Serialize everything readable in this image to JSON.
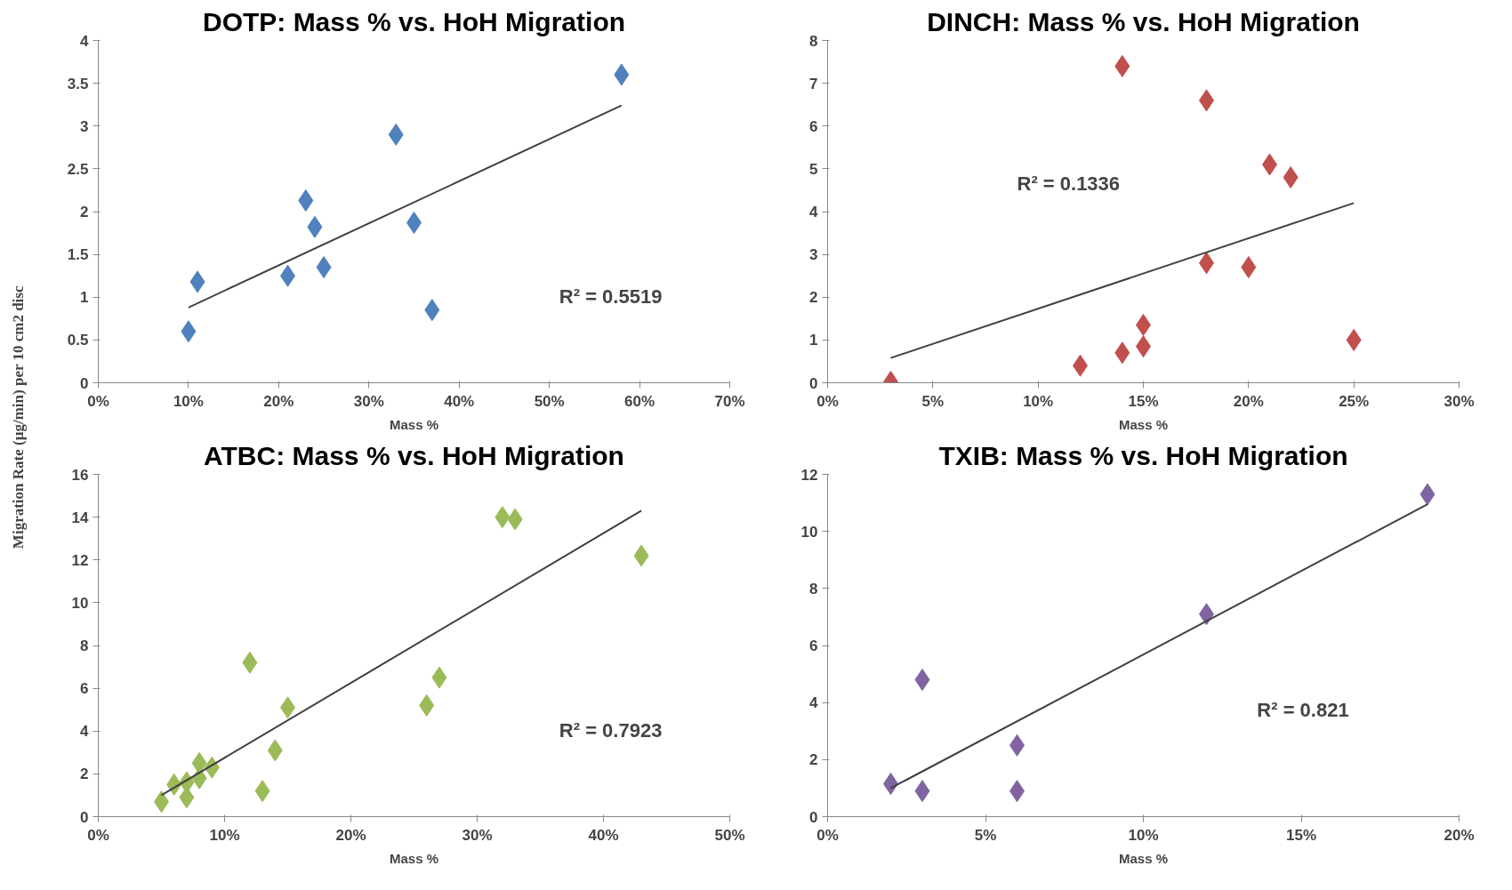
{
  "chart_data": [
    {
      "type": "scatter",
      "title": "DOTP: Mass % vs. HoH Migration",
      "xlabel": "Mass %",
      "ylabel": "Migration Rate (µg/min) per 10 cm2 disc",
      "grid": false,
      "xlim": [
        0,
        70
      ],
      "xticks": [
        {
          "value": 0,
          "label": "0%"
        },
        {
          "value": 10,
          "label": "10%"
        },
        {
          "value": 20,
          "label": "20%"
        },
        {
          "value": 30,
          "label": "30%"
        },
        {
          "value": 40,
          "label": "40%"
        },
        {
          "value": 50,
          "label": "50%"
        },
        {
          "value": 60,
          "label": "60%"
        },
        {
          "value": 70,
          "label": "70%"
        }
      ],
      "ylim": [
        0,
        4
      ],
      "yticks": [
        0,
        0.5,
        1,
        1.5,
        2,
        2.5,
        3,
        3.5,
        4
      ],
      "annotations": [
        "R² = 0.5519"
      ],
      "series": [
        {
          "marker": "diamond",
          "color": "#4f81bd",
          "x": [
            10,
            11,
            21,
            23,
            24,
            25,
            33,
            35,
            37,
            58
          ],
          "values": [
            0.6,
            1.18,
            1.25,
            2.13,
            1.82,
            1.35,
            2.9,
            1.87,
            0.85,
            3.6
          ]
        },
        {
          "type": "line",
          "color": "#404040",
          "x": [
            10,
            58
          ],
          "values": [
            0.88,
            3.24
          ]
        }
      ]
    },
    {
      "type": "scatter",
      "title": "DINCH: Mass % vs. HoH Migration",
      "xlabel": "Mass %",
      "grid": false,
      "xlim": [
        0,
        30
      ],
      "xticks": [
        {
          "value": 0,
          "label": "0%"
        },
        {
          "value": 5,
          "label": "5%"
        },
        {
          "value": 10,
          "label": "10%"
        },
        {
          "value": 15,
          "label": "15%"
        },
        {
          "value": 20,
          "label": "20%"
        },
        {
          "value": 25,
          "label": "25%"
        },
        {
          "value": 30,
          "label": "30%"
        }
      ],
      "ylim": [
        0,
        8
      ],
      "yticks": [
        0,
        1,
        2,
        3,
        4,
        5,
        6,
        7,
        8
      ],
      "annotations": [
        "R² = 0.1336"
      ],
      "series": [
        {
          "marker": "diamond",
          "color": "#c0504d",
          "x": [
            3,
            12,
            14,
            14,
            15,
            15,
            18,
            18,
            20,
            21,
            22,
            25
          ],
          "values": [
            0.02,
            0.4,
            0.7,
            7.4,
            0.85,
            1.35,
            2.8,
            6.6,
            2.7,
            5.1,
            4.8,
            1.0
          ]
        },
        {
          "type": "line",
          "color": "#404040",
          "x": [
            3,
            25
          ],
          "values": [
            0.58,
            4.2
          ]
        }
      ]
    },
    {
      "type": "scatter",
      "title": "ATBC: Mass % vs. HoH Migration",
      "xlabel": "Mass %",
      "grid": false,
      "xlim": [
        0,
        50
      ],
      "xticks": [
        {
          "value": 0,
          "label": "0%"
        },
        {
          "value": 10,
          "label": "10%"
        },
        {
          "value": 20,
          "label": "20%"
        },
        {
          "value": 30,
          "label": "30%"
        },
        {
          "value": 40,
          "label": "40%"
        },
        {
          "value": 50,
          "label": "50%"
        }
      ],
      "ylim": [
        0,
        16
      ],
      "yticks": [
        0,
        2,
        4,
        6,
        8,
        10,
        12,
        14,
        16
      ],
      "annotations": [
        "R² = 0.7923"
      ],
      "series": [
        {
          "marker": "diamond",
          "color": "#9bbb59",
          "x": [
            5,
            6,
            7,
            7,
            8,
            8,
            9,
            12,
            13,
            14,
            15,
            26,
            27,
            32,
            33,
            43
          ],
          "values": [
            0.7,
            1.5,
            0.9,
            1.6,
            1.8,
            2.5,
            2.3,
            7.2,
            1.2,
            3.1,
            5.1,
            5.2,
            6.5,
            14.0,
            13.9,
            12.2
          ]
        },
        {
          "type": "line",
          "color": "#404040",
          "x": [
            5,
            43
          ],
          "values": [
            1.0,
            14.3
          ]
        }
      ]
    },
    {
      "type": "scatter",
      "title": "TXIB: Mass % vs. HoH Migration",
      "xlabel": "Mass %",
      "grid": false,
      "xlim": [
        0,
        20
      ],
      "xticks": [
        {
          "value": 0,
          "label": "0%"
        },
        {
          "value": 5,
          "label": "5%"
        },
        {
          "value": 10,
          "label": "10%"
        },
        {
          "value": 15,
          "label": "15%"
        },
        {
          "value": 20,
          "label": "20%"
        }
      ],
      "ylim": [
        0,
        12
      ],
      "yticks": [
        0,
        2,
        4,
        6,
        8,
        10,
        12
      ],
      "annotations": [
        "R² = 0.821"
      ],
      "series": [
        {
          "marker": "diamond",
          "color": "#8064a2",
          "x": [
            2,
            3,
            3,
            6,
            6,
            12,
            19
          ],
          "values": [
            1.15,
            0.9,
            4.8,
            2.5,
            0.9,
            7.1,
            11.3
          ]
        },
        {
          "type": "line",
          "color": "#404040",
          "x": [
            2,
            19
          ],
          "values": [
            1.0,
            10.95
          ]
        }
      ]
    }
  ]
}
